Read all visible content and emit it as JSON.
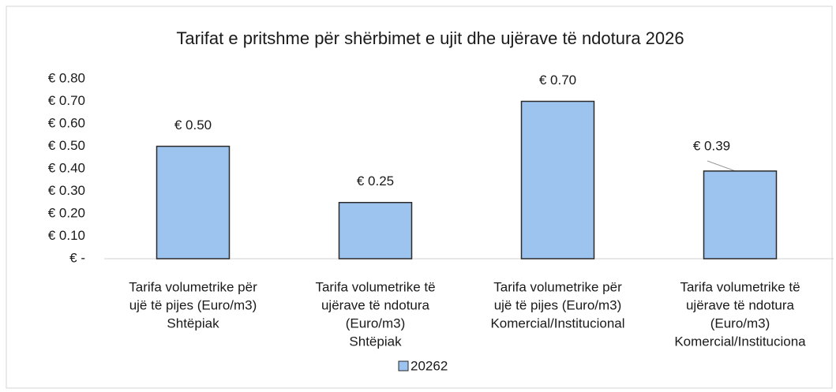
{
  "chart_data": {
    "type": "bar",
    "title": "Tarifat e pritshme për shërbimet e ujit dhe ujërave të ndotura 2026",
    "categories": [
      [
        "Tarifa volumetrike për",
        "ujë të pijes (Euro/m3)",
        "Shtëpiak"
      ],
      [
        "Tarifa volumetrike të",
        "ujërave të ndotura",
        "(Euro/m3)",
        "Shtëpiak"
      ],
      [
        "Tarifa volumetrike për",
        "ujë të pijes (Euro/m3)",
        "Komercial/Institucional"
      ],
      [
        "Tarifa volumetrike të",
        "ujërave të ndotura",
        "(Euro/m3)",
        "Komercial/Instituciona"
      ]
    ],
    "series": [
      {
        "name": "20262",
        "color": "#9dc3ef",
        "values": [
          0.5,
          0.25,
          0.7,
          0.39
        ],
        "value_labels": [
          "€ 0.50",
          "€ 0.25",
          "€ 0.70",
          "€ 0.39"
        ]
      }
    ],
    "ylim": [
      0,
      0.8
    ],
    "yticks": [
      {
        "value": 0,
        "label": "€ -"
      },
      {
        "value": 0.1,
        "label": "€ 0.10"
      },
      {
        "value": 0.2,
        "label": "€ 0.20"
      },
      {
        "value": 0.3,
        "label": "€ 0.30"
      },
      {
        "value": 0.4,
        "label": "€ 0.40"
      },
      {
        "value": 0.5,
        "label": "€ 0.50"
      },
      {
        "value": 0.6,
        "label": "€ 0.60"
      },
      {
        "value": 0.7,
        "label": "€ 0.70"
      },
      {
        "value": 0.8,
        "label": "€ 0.80"
      }
    ],
    "grid": false
  }
}
